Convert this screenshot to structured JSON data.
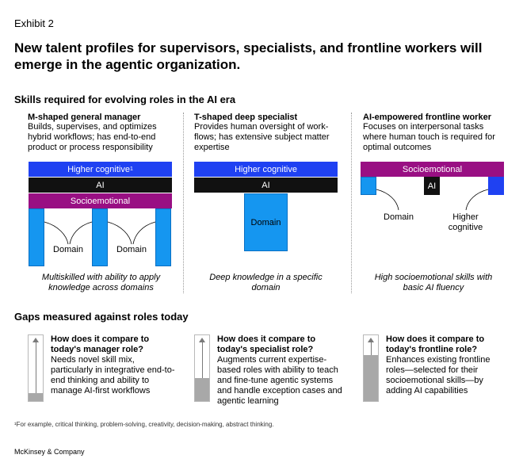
{
  "exhibit": "Exhibit 2",
  "headline": "New talent profiles for supervisors, specialists, and frontline workers will emerge in the agentic organization.",
  "skills_section_title": "Skills required for evolving roles in the AI era",
  "columns": [
    {
      "title": "M-shaped general manager",
      "description": "Builds, supervises, and optimizes hybrid workflows; has end-to-end product or process responsibility",
      "bars": {
        "higher_cognitive": "Higher cognitive",
        "footnote_mark": "1",
        "ai": "AI",
        "socioemotional": "Socioemotional"
      },
      "domain_labels": [
        "Domain",
        "Domain"
      ],
      "caption": "Multiskilled with ability to apply knowledge across domains"
    },
    {
      "title": "T-shaped deep specialist",
      "description": "Provides human oversight of work-flows; has extensive subject matter expertise",
      "bars": {
        "higher_cognitive": "Higher cognitive",
        "ai": "AI"
      },
      "domain_label": "Domain",
      "caption": "Deep knowledge in a specific domain"
    },
    {
      "title": "AI-empowered frontline worker",
      "description": "Focuses on interpersonal tasks where human touch is required for optimal outcomes",
      "bars": {
        "socioemotional": "Socioemotional",
        "ai": "AI"
      },
      "labels": {
        "domain": "Domain",
        "higher_cognitive": "Higher cognitive"
      },
      "caption": "High socioemotional skills with basic AI fluency"
    }
  ],
  "gaps_section_title": "Gaps measured against roles today",
  "gaps": [
    {
      "question": "How does it compare to today's manager role?",
      "answer": "Needs novel skill mix, particularly in integrative end-to-end thinking and ability to manage AI-first workflows",
      "level": 0.12
    },
    {
      "question": "How does it compare to today's specialist role?",
      "answer": "Augments current expertise-based roles with ability to teach and fine-tune agentic systems and handle exception cases and agentic learning",
      "level": 0.35
    },
    {
      "question": "How does it compare to today's frontline role?",
      "answer": "Enhances existing frontline roles—selected for their socioemotional skills—by adding AI capabilities",
      "level": 0.7
    }
  ],
  "footnote": "¹For example, critical thinking, problem-solving, creativity, decision-making, abstract thinking.",
  "brand": "McKinsey & Company",
  "colors": {
    "higher_cognitive": "#1f41f2",
    "ai": "#111111",
    "socioemotional": "#990f83",
    "domain": "#1596f0",
    "meter_fill": "#a8a8a8"
  }
}
